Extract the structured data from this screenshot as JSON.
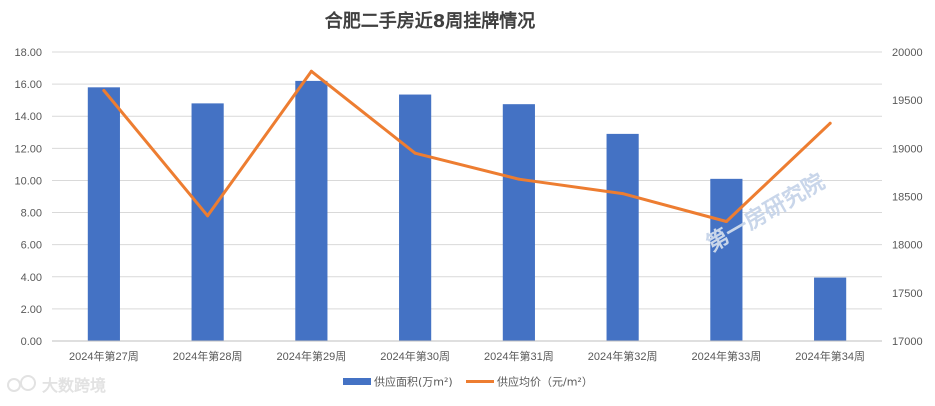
{
  "chart_data": {
    "type": "bar",
    "title": "合肥二手房近8周挂牌情况",
    "categories": [
      "2024年第27周",
      "2024年第28周",
      "2024年第29周",
      "2024年第30周",
      "2024年第31周",
      "2024年第32周",
      "2024年第33周",
      "2024年第34周"
    ],
    "series": [
      {
        "name": "供应面积(万m²)",
        "type": "bar",
        "axis": "left",
        "color": "#4472C4",
        "values": [
          15.8,
          14.8,
          16.2,
          15.35,
          14.75,
          12.9,
          10.1,
          3.95
        ]
      },
      {
        "name": "供应均价（元/m²）",
        "type": "line",
        "axis": "right",
        "color": "#ED7D31",
        "values": [
          19600,
          18300,
          19800,
          18950,
          18680,
          18530,
          18240,
          19260
        ]
      }
    ],
    "y_left": {
      "min": 0,
      "max": 18,
      "step": 2,
      "tick_labels": [
        "0.00",
        "2.00",
        "4.00",
        "6.00",
        "8.00",
        "10.00",
        "12.00",
        "14.00",
        "16.00",
        "18.00"
      ]
    },
    "y_right": {
      "min": 17000,
      "max": 20000,
      "step": 500,
      "tick_labels": [
        "17000",
        "17500",
        "18000",
        "18500",
        "19000",
        "19500",
        "20000"
      ]
    },
    "grid": true,
    "legend_position": "bottom"
  },
  "watermarks": {
    "center": "第一房研究院",
    "bottom_left": "大数跨境"
  }
}
